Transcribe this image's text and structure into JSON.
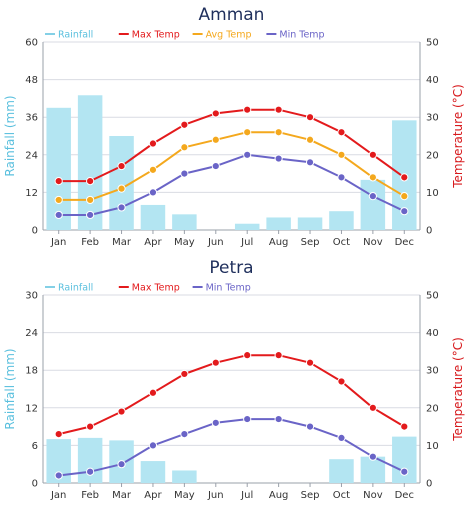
{
  "chart_data": [
    {
      "type": "bar+line",
      "title": "Amman",
      "categories": [
        "Jan",
        "Feb",
        "Mar",
        "Apr",
        "May",
        "Jun",
        "Jul",
        "Aug",
        "Sep",
        "Oct",
        "Nov",
        "Dec"
      ],
      "ylabel_left": "Rainfall (mm)",
      "ylabel_right": "Temperature (°C)",
      "ylim_left": [
        0,
        60
      ],
      "ylim_right": [
        0,
        50
      ],
      "yticks_left": [
        "0",
        "12",
        "24",
        "36",
        "48",
        "60"
      ],
      "yticks_right": [
        "0",
        "10",
        "20",
        "30",
        "40",
        "50"
      ],
      "legend_position": "top-left",
      "grid": true,
      "bars": {
        "name": "Rainfall",
        "color": "#b3e5f2",
        "values": [
          39,
          43,
          30,
          8,
          5,
          0,
          2,
          4,
          4,
          6,
          16,
          35
        ]
      },
      "lines": [
        {
          "name": "Max Temp",
          "color": "#e31a1c",
          "values": [
            13,
            13,
            17,
            23,
            28,
            31,
            32,
            32,
            30,
            26,
            20,
            14
          ]
        },
        {
          "name": "Avg Temp",
          "color": "#f4a81d",
          "values": [
            8,
            8,
            11,
            16,
            22,
            24,
            26,
            26,
            24,
            20,
            14,
            9
          ]
        },
        {
          "name": "Min Temp",
          "color": "#6a64c7",
          "values": [
            4,
            4,
            6,
            10,
            15,
            17,
            20,
            19,
            18,
            14,
            9,
            5
          ]
        }
      ]
    },
    {
      "type": "bar+line",
      "title": "Petra",
      "categories": [
        "Jan",
        "Feb",
        "Mar",
        "Apr",
        "May",
        "Jun",
        "Jul",
        "Aug",
        "Sep",
        "Oct",
        "Nov",
        "Dec"
      ],
      "ylabel_left": "Rainfall (mm)",
      "ylabel_right": "Temperature (°C)",
      "ylim_left": [
        0,
        30
      ],
      "ylim_right": [
        0,
        50
      ],
      "yticks_left": [
        "0",
        "6",
        "12",
        "18",
        "24",
        "30"
      ],
      "yticks_right": [
        "0",
        "10",
        "20",
        "30",
        "40",
        "50"
      ],
      "legend_position": "top-left",
      "grid": true,
      "bars": {
        "name": "Rainfall",
        "color": "#b3e5f2",
        "values": [
          7,
          7.2,
          6.8,
          3.5,
          2,
          0,
          0,
          0,
          0,
          3.8,
          4.2,
          7.4
        ]
      },
      "lines": [
        {
          "name": "Max Temp",
          "color": "#e31a1c",
          "values": [
            13,
            15,
            19,
            24,
            29,
            32,
            34,
            34,
            32,
            27,
            20,
            15
          ]
        },
        {
          "name": "Min Temp",
          "color": "#6a64c7",
          "values": [
            2,
            3,
            5,
            10,
            13,
            16,
            17,
            17,
            15,
            12,
            7,
            3
          ]
        }
      ]
    }
  ]
}
